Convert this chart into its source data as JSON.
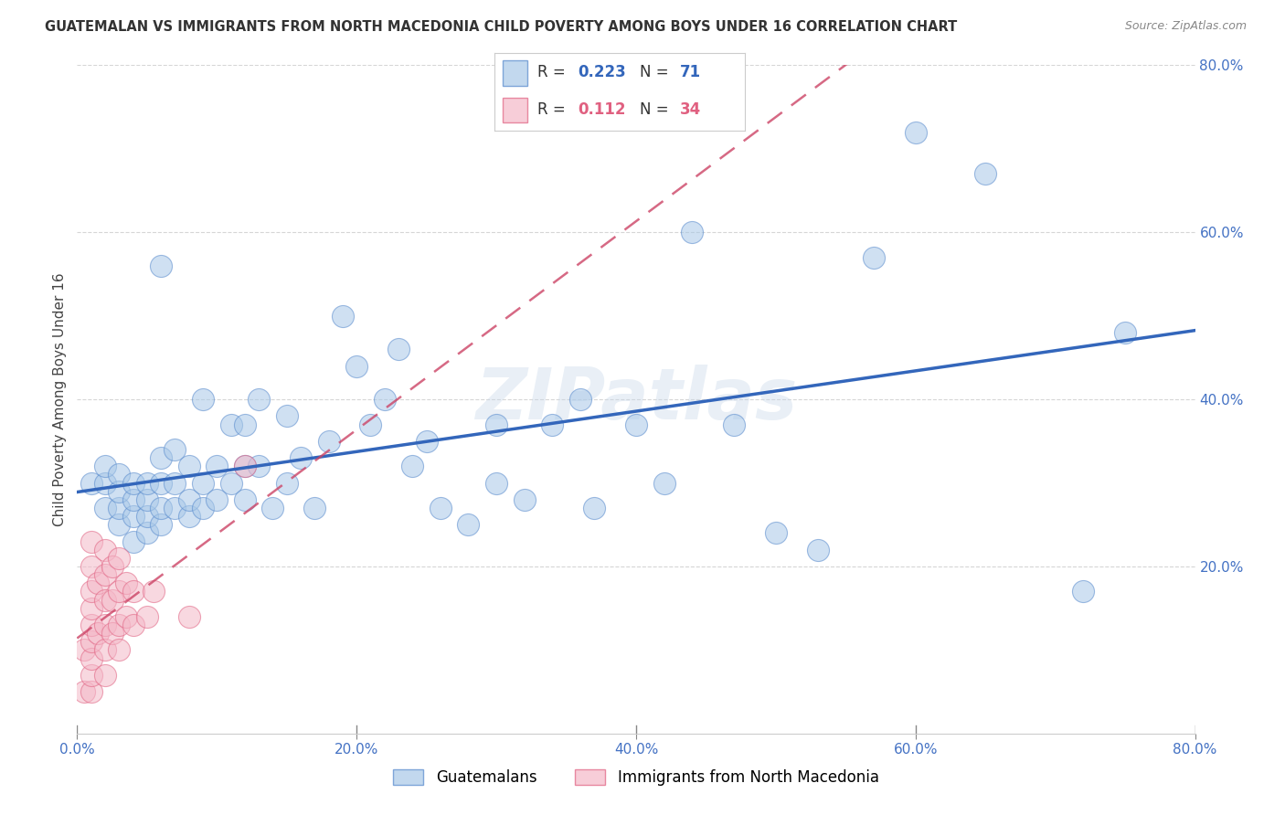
{
  "title": "GUATEMALAN VS IMMIGRANTS FROM NORTH MACEDONIA CHILD POVERTY AMONG BOYS UNDER 16 CORRELATION CHART",
  "source": "Source: ZipAtlas.com",
  "ylabel": "Child Poverty Among Boys Under 16",
  "watermark": "ZIPatlas",
  "blue_R": 0.223,
  "blue_N": 71,
  "pink_R": 0.112,
  "pink_N": 34,
  "blue_color": "#a8c8e8",
  "pink_color": "#f4b8c8",
  "blue_edge_color": "#5588cc",
  "pink_edge_color": "#e06080",
  "blue_line_color": "#3366bb",
  "pink_line_color": "#cc4466",
  "legend_blue_label": "Guatemalans",
  "legend_pink_label": "Immigrants from North Macedonia",
  "xlim": [
    0,
    0.8
  ],
  "ylim": [
    0,
    0.8
  ],
  "xtick_vals": [
    0.0,
    0.2,
    0.4,
    0.6,
    0.8
  ],
  "ytick_vals": [
    0.2,
    0.4,
    0.6,
    0.8
  ],
  "blue_x": [
    0.01,
    0.02,
    0.02,
    0.02,
    0.03,
    0.03,
    0.03,
    0.03,
    0.04,
    0.04,
    0.04,
    0.04,
    0.05,
    0.05,
    0.05,
    0.05,
    0.06,
    0.06,
    0.06,
    0.06,
    0.06,
    0.07,
    0.07,
    0.07,
    0.08,
    0.08,
    0.08,
    0.09,
    0.09,
    0.09,
    0.1,
    0.1,
    0.11,
    0.11,
    0.12,
    0.12,
    0.12,
    0.13,
    0.13,
    0.14,
    0.15,
    0.15,
    0.16,
    0.17,
    0.18,
    0.19,
    0.2,
    0.21,
    0.22,
    0.23,
    0.24,
    0.25,
    0.26,
    0.28,
    0.3,
    0.3,
    0.32,
    0.34,
    0.36,
    0.37,
    0.4,
    0.42,
    0.44,
    0.47,
    0.5,
    0.53,
    0.57,
    0.6,
    0.65,
    0.72,
    0.75
  ],
  "blue_y": [
    0.3,
    0.27,
    0.3,
    0.32,
    0.25,
    0.27,
    0.29,
    0.31,
    0.23,
    0.26,
    0.28,
    0.3,
    0.24,
    0.26,
    0.28,
    0.3,
    0.25,
    0.27,
    0.3,
    0.33,
    0.56,
    0.27,
    0.3,
    0.34,
    0.26,
    0.28,
    0.32,
    0.27,
    0.3,
    0.4,
    0.28,
    0.32,
    0.3,
    0.37,
    0.28,
    0.32,
    0.37,
    0.32,
    0.4,
    0.27,
    0.3,
    0.38,
    0.33,
    0.27,
    0.35,
    0.5,
    0.44,
    0.37,
    0.4,
    0.46,
    0.32,
    0.35,
    0.27,
    0.25,
    0.37,
    0.3,
    0.28,
    0.37,
    0.4,
    0.27,
    0.37,
    0.3,
    0.6,
    0.37,
    0.24,
    0.22,
    0.57,
    0.72,
    0.67,
    0.17,
    0.48
  ],
  "pink_x": [
    0.005,
    0.005,
    0.01,
    0.01,
    0.01,
    0.01,
    0.01,
    0.01,
    0.01,
    0.01,
    0.01,
    0.015,
    0.015,
    0.02,
    0.02,
    0.02,
    0.02,
    0.02,
    0.02,
    0.025,
    0.025,
    0.025,
    0.03,
    0.03,
    0.03,
    0.03,
    0.035,
    0.035,
    0.04,
    0.04,
    0.05,
    0.055,
    0.08,
    0.12
  ],
  "pink_y": [
    0.05,
    0.1,
    0.05,
    0.07,
    0.09,
    0.11,
    0.13,
    0.15,
    0.17,
    0.2,
    0.23,
    0.12,
    0.18,
    0.07,
    0.1,
    0.13,
    0.16,
    0.19,
    0.22,
    0.12,
    0.16,
    0.2,
    0.1,
    0.13,
    0.17,
    0.21,
    0.14,
    0.18,
    0.13,
    0.17,
    0.14,
    0.17,
    0.14,
    0.32
  ]
}
